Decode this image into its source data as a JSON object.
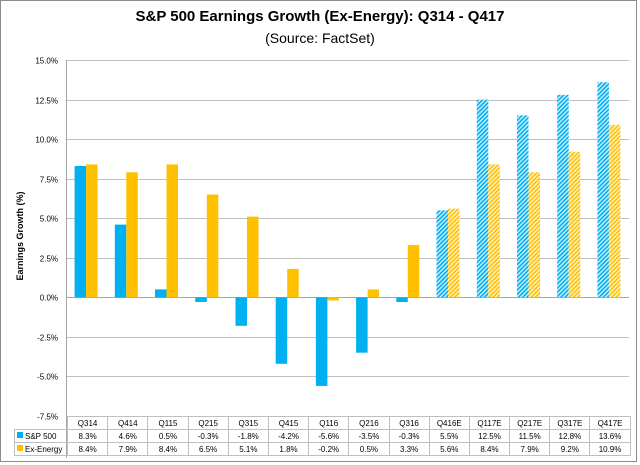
{
  "chart_data": {
    "type": "bar",
    "title": "S&P 500 Earnings Growth (Ex-Energy): Q314 - Q417",
    "subtitle": "(Source: FactSet)",
    "xlabel": "",
    "ylabel": "Earnings Growth (%)",
    "ylim": [
      -7.5,
      15.0
    ],
    "yticks": [
      15.0,
      12.5,
      10.0,
      7.5,
      5.0,
      2.5,
      0.0,
      -2.5,
      -5.0,
      -7.5
    ],
    "ytick_labels": [
      "15.0%",
      "12.5%",
      "10.0%",
      "7.5%",
      "5.0%",
      "2.5%",
      "0.0%",
      "-2.5%",
      "-5.0%",
      "-7.5%"
    ],
    "grid": true,
    "legend_placement": "data-table-left",
    "categories": [
      "Q314",
      "Q414",
      "Q115",
      "Q215",
      "Q315",
      "Q415",
      "Q116",
      "Q216",
      "Q316",
      "Q416E",
      "Q117E",
      "Q217E",
      "Q317E",
      "Q417E"
    ],
    "estimated_from_index": 9,
    "series": [
      {
        "name": "S&P 500",
        "color": "#00B0F0",
        "values": [
          8.3,
          4.6,
          0.5,
          -0.3,
          -1.8,
          -4.2,
          -5.6,
          -3.5,
          -0.3,
          5.5,
          12.5,
          11.5,
          12.8,
          13.6
        ],
        "labels": [
          "8.3%",
          "4.6%",
          "0.5%",
          "-0.3%",
          "-1.8%",
          "-4.2%",
          "-5.6%",
          "-3.5%",
          "-0.3%",
          "5.5%",
          "12.5%",
          "11.5%",
          "12.8%",
          "13.6%"
        ]
      },
      {
        "name": "Ex-Energy",
        "color": "#FFC000",
        "values": [
          8.4,
          7.9,
          8.4,
          6.5,
          5.1,
          1.8,
          -0.2,
          0.5,
          3.3,
          5.6,
          8.4,
          7.9,
          9.2,
          10.9
        ],
        "labels": [
          "8.4%",
          "7.9%",
          "8.4%",
          "6.5%",
          "5.1%",
          "1.8%",
          "-0.2%",
          "0.5%",
          "3.3%",
          "5.6%",
          "8.4%",
          "7.9%",
          "9.2%",
          "10.9%"
        ]
      }
    ]
  }
}
